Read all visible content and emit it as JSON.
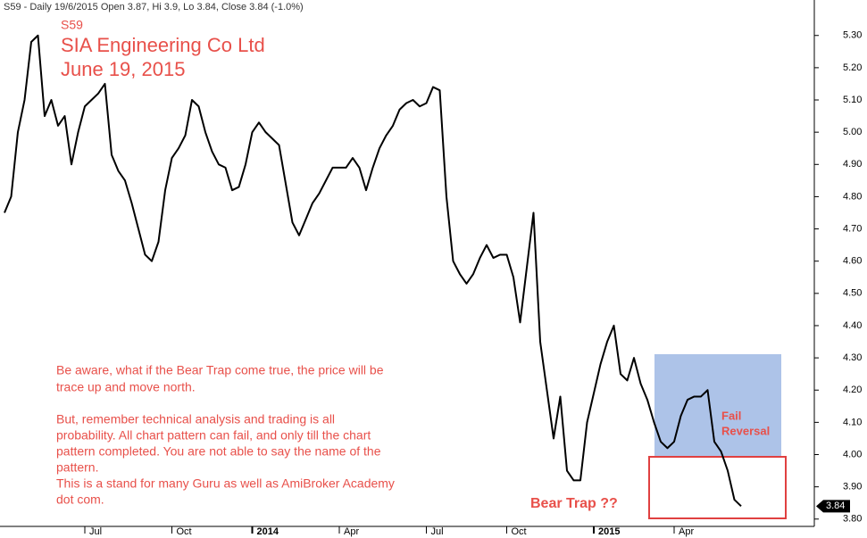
{
  "chart_data": {
    "type": "line",
    "header": "S59 - Daily 19/6/2015 Open 3.87, Hi 3.9, Lo 3.84, Close 3.84 (-1.0%)",
    "symbol": "S59",
    "title": "SIA Engineering Co Ltd",
    "subtitle": "June 19, 2015",
    "annotation_1": [
      "Be aware, what if the Bear Trap come true, the price will be",
      "trace up and move north."
    ],
    "annotation_2": [
      "But, remember technical analysis and trading is all",
      "probability. All chart pattern can fail, and only till the chart",
      "pattern completed. You are not able to say the name of the",
      "pattern.",
      "This is a stand for many Guru as well as AmiBroker Academy",
      "dot com."
    ],
    "bear_trap_label": "Bear Trap ??",
    "fail_reversal_label": [
      "Fail",
      "Reversal"
    ],
    "color": "#000000",
    "last_value_label": "3.84",
    "categories": [
      null,
      null,
      null,
      null,
      null,
      null,
      null,
      null,
      null,
      null,
      null,
      null,
      "Jul",
      null,
      null,
      null,
      null,
      null,
      null,
      null,
      null,
      null,
      null,
      null,
      null,
      "Oct",
      null,
      null,
      null,
      null,
      null,
      null,
      null,
      null,
      null,
      null,
      null,
      "2014",
      null,
      null,
      null,
      null,
      null,
      null,
      null,
      null,
      null,
      null,
      null,
      null,
      "Apr",
      null,
      null,
      null,
      null,
      null,
      null,
      null,
      null,
      null,
      null,
      null,
      null,
      "Jul",
      null,
      null,
      null,
      null,
      null,
      null,
      null,
      null,
      null,
      null,
      null,
      "Oct",
      null,
      null,
      null,
      null,
      null,
      null,
      null,
      null,
      null,
      null,
      null,
      null,
      "2015",
      null,
      null,
      null,
      null,
      null,
      null,
      null,
      null,
      null,
      null,
      null,
      "Apr",
      null,
      null,
      null,
      null,
      null,
      null,
      null,
      null,
      null,
      null
    ],
    "values": [
      4.75,
      4.8,
      5.0,
      5.1,
      5.28,
      5.3,
      5.05,
      5.1,
      5.02,
      5.05,
      4.9,
      5.0,
      5.08,
      5.1,
      5.12,
      5.15,
      4.93,
      4.88,
      4.85,
      4.78,
      4.7,
      4.62,
      4.6,
      4.66,
      4.82,
      4.92,
      4.95,
      4.99,
      5.1,
      5.08,
      5.0,
      4.94,
      4.9,
      4.89,
      4.82,
      4.83,
      4.9,
      5.0,
      5.03,
      5.0,
      4.98,
      4.96,
      4.84,
      4.72,
      4.68,
      4.73,
      4.78,
      4.81,
      4.85,
      4.89,
      4.89,
      4.89,
      4.92,
      4.89,
      4.82,
      4.89,
      4.95,
      4.99,
      5.02,
      5.07,
      5.09,
      5.1,
      5.08,
      5.09,
      5.14,
      5.13,
      4.8,
      4.6,
      4.56,
      4.53,
      4.56,
      4.61,
      4.65,
      4.61,
      4.62,
      4.62,
      4.55,
      4.41,
      4.58,
      4.75,
      4.35,
      4.2,
      4.05,
      4.18,
      3.95,
      3.92,
      3.92,
      4.1,
      4.19,
      4.28,
      4.35,
      4.4,
      4.25,
      4.23,
      4.3,
      4.22,
      4.17,
      4.1,
      4.04,
      4.02,
      4.04,
      4.12,
      4.17,
      4.18,
      4.18,
      4.2,
      4.04,
      4.01,
      3.95,
      3.86,
      3.84
    ],
    "ylim": [
      3.78,
      5.41
    ],
    "yticks": [
      {
        "value": 3.8,
        "label": "3.80"
      },
      {
        "value": 3.9,
        "label": "3.90"
      },
      {
        "value": 4.0,
        "label": "4.00"
      },
      {
        "value": 4.1,
        "label": "4.10"
      },
      {
        "value": 4.2,
        "label": "4.20"
      },
      {
        "value": 4.3,
        "label": "4.30"
      },
      {
        "value": 4.4,
        "label": "4.40"
      },
      {
        "value": 4.5,
        "label": "4.50"
      },
      {
        "value": 4.6,
        "label": "4.60"
      },
      {
        "value": 4.7,
        "label": "4.70"
      },
      {
        "value": 4.8,
        "label": "4.80"
      },
      {
        "value": 4.9,
        "label": "4.90"
      },
      {
        "value": 5.0,
        "label": "5.00"
      },
      {
        "value": 5.1,
        "label": "5.10"
      },
      {
        "value": 5.2,
        "label": "5.20"
      },
      {
        "value": 5.3,
        "label": "5.30"
      }
    ],
    "grid": false
  }
}
